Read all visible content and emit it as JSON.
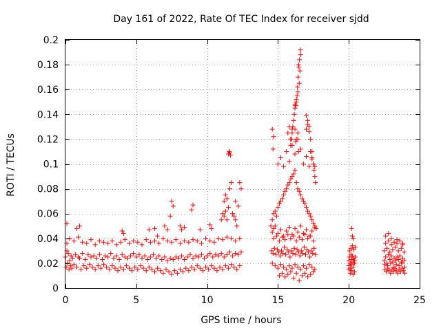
{
  "chart_data": {
    "type": "scatter",
    "title": "Day 161 of 2022, Rate Of TEC Index for receiver sjdd",
    "xlabel": "GPS time / hours",
    "ylabel": "ROTI / TECUs",
    "xlim": [
      0,
      25
    ],
    "ylim": [
      0,
      0.2
    ],
    "xticks": [
      0,
      5,
      10,
      15,
      20,
      25
    ],
    "yticks": [
      0,
      0.02,
      0.04,
      0.06,
      0.08,
      0.1,
      0.12,
      0.14,
      0.16,
      0.18,
      0.2
    ],
    "xtick_labels": [
      "0",
      "5",
      "10",
      "15",
      "20",
      "25"
    ],
    "ytick_labels": [
      "0",
      "0.02",
      "0.04",
      "0.06",
      "0.08",
      "0.1",
      "0.12",
      "0.14",
      "0.16",
      "0.18",
      "0.2"
    ],
    "grid": true,
    "marker": "+",
    "series": [
      {
        "name": "ROTI",
        "color": "#ff0000",
        "x": [
          0.0,
          0.1,
          0.2,
          0.3,
          0.4,
          0.5,
          0.7,
          0.9,
          1.0,
          1.2,
          1.4,
          1.6,
          1.8,
          2.0,
          2.2,
          2.4,
          2.6,
          2.8,
          3.0,
          3.2,
          3.4,
          3.6,
          3.8,
          4.0,
          4.2,
          4.4,
          4.6,
          4.8,
          5.0,
          5.2,
          5.4,
          5.6,
          5.8,
          6.0,
          6.2,
          6.4,
          6.6,
          6.8,
          7.0,
          7.2,
          7.4,
          7.6,
          7.8,
          8.0,
          8.2,
          8.4,
          8.6,
          8.8,
          9.0,
          9.2,
          9.4,
          9.6,
          9.8,
          10.0,
          10.2,
          10.4,
          10.6,
          10.8,
          11.0,
          11.2,
          11.4,
          11.6,
          11.8,
          12.0,
          12.2,
          12.4,
          0.05,
          0.15,
          0.25,
          0.35,
          0.45,
          0.6,
          0.8,
          1.1,
          1.3,
          1.5,
          1.7,
          1.9,
          2.1,
          2.3,
          2.5,
          2.7,
          2.9,
          3.1,
          3.3,
          3.5,
          3.7,
          3.9,
          4.1,
          4.3,
          4.5,
          4.7,
          4.9,
          5.1,
          5.3,
          5.5,
          5.7,
          5.9,
          6.1,
          6.3,
          6.5,
          6.7,
          6.9,
          7.1,
          7.3,
          7.5,
          7.7,
          7.9,
          8.1,
          8.3,
          8.5,
          8.7,
          8.9,
          9.1,
          9.3,
          9.5,
          9.7,
          9.9,
          10.1,
          10.3,
          10.5,
          10.7,
          10.9,
          11.1,
          11.3,
          11.5,
          11.7,
          11.9,
          12.1,
          12.3,
          0.1,
          0.3,
          0.6,
          0.9,
          1.2,
          1.5,
          1.8,
          2.1,
          2.4,
          2.7,
          3.0,
          3.3,
          3.6,
          3.9,
          4.2,
          4.5,
          4.8,
          5.1,
          5.4,
          5.7,
          6.0,
          6.3,
          6.6,
          6.9,
          7.2,
          7.5,
          7.8,
          8.1,
          8.4,
          8.7,
          9.0,
          9.3,
          9.6,
          9.9,
          10.2,
          10.5,
          10.8,
          11.1,
          11.4,
          11.7,
          12.0,
          12.3,
          0.1,
          0.8,
          1.0,
          4.0,
          4.1,
          5.9,
          6.3,
          6.5,
          7.0,
          7.2,
          7.4,
          7.5,
          7.6,
          8.1,
          8.2,
          8.4,
          8.9,
          9.0,
          9.5,
          10.2,
          10.3,
          11.0,
          11.1,
          11.2,
          11.3,
          11.4,
          11.5,
          11.6,
          11.7,
          11.8,
          11.9,
          12.0,
          12.1,
          12.3,
          12.4,
          11.5,
          11.55,
          11.6,
          11.65,
          11.2,
          11.3,
          11.4,
          12.0,
          12.2,
          14.5,
          14.6,
          14.7,
          14.8,
          14.9,
          15.0,
          15.1,
          15.2,
          15.3,
          15.4,
          15.5,
          15.6,
          15.7,
          15.8,
          15.9,
          16.0,
          16.1,
          16.2,
          16.3,
          16.4,
          16.5,
          16.6,
          16.7,
          16.8,
          16.9,
          17.0,
          17.1,
          17.2,
          17.3,
          17.4,
          17.5,
          17.6,
          17.7,
          14.55,
          14.65,
          14.75,
          14.85,
          14.95,
          15.05,
          15.15,
          15.25,
          15.35,
          15.45,
          15.55,
          15.65,
          15.75,
          15.85,
          15.95,
          16.05,
          16.15,
          16.25,
          16.35,
          16.45,
          16.55,
          16.65,
          16.75,
          16.85,
          16.95,
          17.05,
          17.15,
          17.25,
          17.35,
          17.45,
          17.55,
          17.65,
          14.6,
          14.8,
          15.0,
          15.2,
          15.4,
          15.6,
          15.8,
          16.0,
          16.2,
          16.4,
          16.6,
          16.8,
          17.0,
          17.2,
          17.4,
          17.6,
          14.7,
          14.9,
          15.1,
          15.3,
          15.5,
          15.7,
          15.9,
          16.1,
          16.3,
          16.5,
          16.7,
          16.9,
          17.1,
          17.3,
          17.5,
          14.6,
          14.7,
          14.8,
          15.0,
          15.2,
          15.4,
          15.6,
          15.8,
          16.0,
          16.2,
          16.4,
          16.6,
          16.8,
          17.0,
          17.2,
          17.4,
          17.6,
          15.1,
          15.3,
          15.5,
          15.7,
          15.9,
          16.1,
          16.3,
          16.5,
          16.7,
          16.9,
          17.1,
          17.3,
          17.5,
          15.0,
          15.2,
          15.4,
          15.6,
          15.8,
          16.0,
          16.2,
          16.4,
          16.6,
          16.8,
          17.0,
          17.2,
          17.4,
          15.9,
          16.0,
          16.1,
          16.2,
          16.3,
          16.4,
          16.5,
          16.55,
          16.45,
          16.6,
          16.58,
          16.52,
          16.48,
          16.42,
          16.38,
          16.35,
          16.3,
          16.25,
          16.2,
          16.15,
          16.1,
          16.05,
          16.0,
          15.95,
          15.9,
          17.0,
          17.1,
          17.2,
          17.3,
          17.4,
          17.5,
          17.55,
          17.6,
          17.65,
          17.0,
          17.1,
          17.2,
          17.3,
          17.4,
          17.5,
          17.6,
          16.3,
          16.4,
          16.45,
          15.7,
          15.8,
          15.9,
          14.6,
          14.7,
          14.65,
          16.2,
          16.25,
          20.0,
          20.05,
          20.1,
          20.15,
          20.2,
          20.25,
          20.3,
          20.35,
          20.4,
          20.45,
          20.0,
          20.1,
          20.2,
          20.3,
          20.4,
          20.05,
          20.15,
          20.25,
          20.35,
          20.45,
          20.0,
          20.1,
          20.2,
          20.3,
          20.4,
          20.2,
          20.25,
          20.3,
          22.5,
          22.6,
          22.7,
          22.8,
          22.9,
          23.0,
          23.1,
          23.2,
          23.3,
          23.4,
          23.5,
          23.6,
          23.7,
          23.8,
          23.9,
          22.55,
          22.65,
          22.75,
          22.85,
          22.95,
          23.05,
          23.15,
          23.25,
          23.35,
          23.45,
          23.55,
          23.65,
          23.75,
          23.85,
          23.95,
          22.5,
          22.7,
          22.9,
          23.1,
          23.3,
          23.5,
          23.7,
          23.9,
          22.6,
          22.8,
          23.0,
          23.2,
          23.4,
          23.6,
          23.8,
          22.55,
          22.75,
          22.95,
          23.15,
          23.35,
          23.55,
          23.75,
          23.95,
          22.6,
          22.8,
          23.0,
          23.4,
          23.8
        ],
        "y": [
          0.025,
          0.03,
          0.028,
          0.022,
          0.026,
          0.024,
          0.027,
          0.025,
          0.024,
          0.028,
          0.023,
          0.027,
          0.025,
          0.026,
          0.024,
          0.027,
          0.023,
          0.026,
          0.025,
          0.028,
          0.024,
          0.026,
          0.023,
          0.027,
          0.025,
          0.024,
          0.026,
          0.028,
          0.025,
          0.027,
          0.024,
          0.026,
          0.023,
          0.025,
          0.027,
          0.024,
          0.026,
          0.023,
          0.025,
          0.022,
          0.024,
          0.023,
          0.025,
          0.024,
          0.026,
          0.023,
          0.025,
          0.027,
          0.024,
          0.026,
          0.025,
          0.027,
          0.024,
          0.026,
          0.028,
          0.025,
          0.027,
          0.026,
          0.028,
          0.025,
          0.027,
          0.029,
          0.026,
          0.028,
          0.027,
          0.029,
          0.017,
          0.02,
          0.015,
          0.018,
          0.016,
          0.019,
          0.017,
          0.015,
          0.018,
          0.016,
          0.019,
          0.017,
          0.015,
          0.018,
          0.016,
          0.019,
          0.017,
          0.015,
          0.018,
          0.016,
          0.014,
          0.017,
          0.015,
          0.018,
          0.016,
          0.014,
          0.017,
          0.015,
          0.018,
          0.016,
          0.014,
          0.017,
          0.015,
          0.013,
          0.016,
          0.014,
          0.012,
          0.015,
          0.013,
          0.011,
          0.014,
          0.012,
          0.015,
          0.013,
          0.016,
          0.014,
          0.017,
          0.015,
          0.018,
          0.016,
          0.014,
          0.017,
          0.015,
          0.018,
          0.016,
          0.014,
          0.017,
          0.015,
          0.018,
          0.016,
          0.019,
          0.017,
          0.015,
          0.018,
          0.036,
          0.04,
          0.038,
          0.041,
          0.037,
          0.036,
          0.039,
          0.035,
          0.038,
          0.037,
          0.036,
          0.038,
          0.035,
          0.037,
          0.039,
          0.036,
          0.038,
          0.037,
          0.035,
          0.039,
          0.037,
          0.038,
          0.036,
          0.04,
          0.038,
          0.037,
          0.039,
          0.036,
          0.038,
          0.037,
          0.039,
          0.038,
          0.036,
          0.04,
          0.038,
          0.037,
          0.04,
          0.039,
          0.041,
          0.04,
          0.038,
          0.04,
          0.052,
          0.048,
          0.05,
          0.046,
          0.044,
          0.047,
          0.048,
          0.042,
          0.05,
          0.047,
          0.058,
          0.07,
          0.066,
          0.05,
          0.047,
          0.049,
          0.063,
          0.067,
          0.047,
          0.051,
          0.048,
          0.055,
          0.06,
          0.07,
          0.075,
          0.072,
          0.065,
          0.08,
          0.085,
          0.06,
          0.058,
          0.055,
          0.05,
          0.085,
          0.08,
          0.108,
          0.11,
          0.109,
          0.107,
          0.058,
          0.062,
          0.055,
          0.07,
          0.066,
          0.05,
          0.055,
          0.06,
          0.062,
          0.058,
          0.065,
          0.068,
          0.07,
          0.072,
          0.075,
          0.078,
          0.08,
          0.083,
          0.085,
          0.088,
          0.09,
          0.092,
          0.095,
          0.085,
          0.08,
          0.078,
          0.075,
          0.072,
          0.07,
          0.068,
          0.065,
          0.062,
          0.06,
          0.058,
          0.055,
          0.052,
          0.05,
          0.048,
          0.03,
          0.028,
          0.032,
          0.027,
          0.031,
          0.029,
          0.026,
          0.03,
          0.028,
          0.033,
          0.027,
          0.031,
          0.029,
          0.025,
          0.03,
          0.028,
          0.032,
          0.027,
          0.031,
          0.029,
          0.026,
          0.03,
          0.028,
          0.033,
          0.027,
          0.031,
          0.029,
          0.025,
          0.03,
          0.028,
          0.032,
          0.027,
          0.02,
          0.018,
          0.016,
          0.019,
          0.017,
          0.015,
          0.018,
          0.016,
          0.019,
          0.017,
          0.015,
          0.018,
          0.016,
          0.019,
          0.017,
          0.015,
          0.04,
          0.042,
          0.038,
          0.041,
          0.039,
          0.043,
          0.04,
          0.042,
          0.038,
          0.041,
          0.039,
          0.043,
          0.04,
          0.042,
          0.038,
          0.045,
          0.048,
          0.05,
          0.044,
          0.047,
          0.042,
          0.046,
          0.049,
          0.043,
          0.048,
          0.045,
          0.05,
          0.044,
          0.047,
          0.042,
          0.046,
          0.049,
          0.01,
          0.012,
          0.009,
          0.011,
          0.013,
          0.008,
          0.012,
          0.006,
          0.01,
          0.012,
          0.009,
          0.011,
          0.013,
          0.1,
          0.105,
          0.098,
          0.11,
          0.102,
          0.115,
          0.108,
          0.12,
          0.112,
          0.1,
          0.106,
          0.098,
          0.104,
          0.12,
          0.128,
          0.135,
          0.148,
          0.152,
          0.158,
          0.165,
          0.175,
          0.18,
          0.188,
          0.192,
          0.184,
          0.178,
          0.17,
          0.162,
          0.155,
          0.15,
          0.147,
          0.145,
          0.14,
          0.135,
          0.13,
          0.125,
          0.12,
          0.115,
          0.139,
          0.135,
          0.13,
          0.12,
          0.11,
          0.1,
          0.095,
          0.09,
          0.085,
          0.128,
          0.132,
          0.126,
          0.11,
          0.105,
          0.1,
          0.098,
          0.12,
          0.125,
          0.11,
          0.125,
          0.13,
          0.12,
          0.128,
          0.122,
          0.112,
          0.128,
          0.118,
          0.022,
          0.025,
          0.02,
          0.027,
          0.023,
          0.026,
          0.021,
          0.024,
          0.022,
          0.025,
          0.015,
          0.012,
          0.014,
          0.011,
          0.013,
          0.03,
          0.032,
          0.034,
          0.031,
          0.033,
          0.018,
          0.016,
          0.019,
          0.017,
          0.02,
          0.048,
          0.042,
          0.04,
          0.022,
          0.025,
          0.02,
          0.027,
          0.023,
          0.026,
          0.021,
          0.024,
          0.022,
          0.025,
          0.023,
          0.026,
          0.021,
          0.024,
          0.022,
          0.015,
          0.013,
          0.016,
          0.014,
          0.012,
          0.015,
          0.013,
          0.016,
          0.014,
          0.012,
          0.015,
          0.013,
          0.016,
          0.014,
          0.012,
          0.03,
          0.032,
          0.029,
          0.031,
          0.033,
          0.03,
          0.032,
          0.029,
          0.036,
          0.038,
          0.035,
          0.037,
          0.036,
          0.038,
          0.035,
          0.019,
          0.018,
          0.02,
          0.017,
          0.019,
          0.018,
          0.02,
          0.017,
          0.042,
          0.044,
          0.04,
          0.039,
          0.036
        ]
      }
    ]
  }
}
